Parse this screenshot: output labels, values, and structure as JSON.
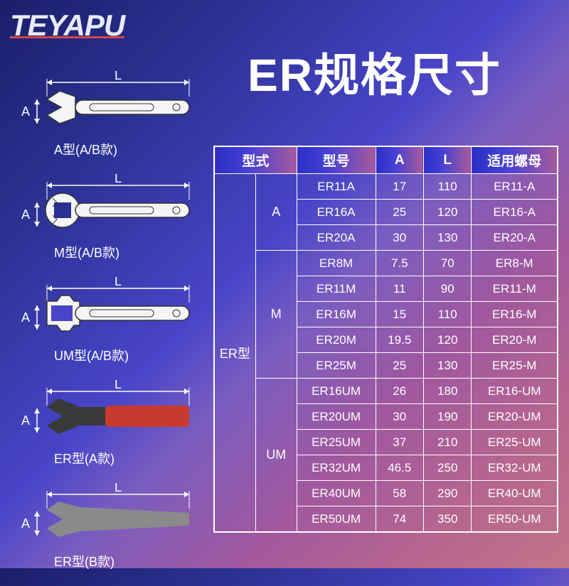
{
  "logo_text": "TEYAPU",
  "title": "ER规格尺寸",
  "background_gradient": [
    "#1a1f6b",
    "#2a3090",
    "#4845c8",
    "#7a5dc0",
    "#a0589f",
    "#b5658f",
    "#c07588"
  ],
  "diagrams": [
    {
      "name": "A",
      "caption": "A型(A/B款)",
      "dim_A": "A",
      "dim_L": "L",
      "wrench_fill": "#f5f5f5",
      "wrench_stroke": "#333333",
      "style": "outline"
    },
    {
      "name": "M",
      "caption": "M型(A/B款)",
      "dim_A": "A",
      "dim_L": "L",
      "wrench_fill": "#f5f5f5",
      "wrench_stroke": "#333333",
      "style": "outline"
    },
    {
      "name": "UM",
      "caption": "UM型(A/B款)",
      "dim_A": "A",
      "dim_L": "L",
      "wrench_fill": "#f5f5f5",
      "wrench_stroke": "#333333",
      "style": "outline"
    },
    {
      "name": "ER-A",
      "caption": "ER型(A款)",
      "dim_A": "A",
      "dim_L": "L",
      "wrench_fill": "#3a3a3a",
      "handle_color": "#c83a2e",
      "style": "photo"
    },
    {
      "name": "ER-B",
      "caption": "ER型(B款)",
      "dim_A": "A",
      "dim_L": "L",
      "wrench_fill": "#8a8a8a",
      "style": "photo"
    }
  ],
  "dim_arrow_color": "#ffffff",
  "table": {
    "columns": [
      "型式",
      "型号",
      "A",
      "L",
      "适用螺母"
    ],
    "header_gradient": [
      "#2b2fc5",
      "#4640d5",
      "#a85a9c"
    ],
    "border_color": "#ffffff",
    "text_color": "#ffffff",
    "font_size": 17,
    "header_font_size": 19,
    "col_widths_pct": [
      12,
      12,
      23,
      14,
      14,
      25
    ],
    "type_label": "ER型",
    "groups": [
      {
        "subtype": "A",
        "rows": [
          {
            "model": "ER11A",
            "A": "17",
            "L": "110",
            "nut": "ER11-A"
          },
          {
            "model": "ER16A",
            "A": "25",
            "L": "120",
            "nut": "ER16-A"
          },
          {
            "model": "ER20A",
            "A": "30",
            "L": "130",
            "nut": "ER20-A"
          }
        ]
      },
      {
        "subtype": "M",
        "rows": [
          {
            "model": "ER8M",
            "A": "7.5",
            "L": "70",
            "nut": "ER8-M"
          },
          {
            "model": "ER11M",
            "A": "11",
            "L": "90",
            "nut": "ER11-M"
          },
          {
            "model": "ER16M",
            "A": "15",
            "L": "110",
            "nut": "ER16-M"
          },
          {
            "model": "ER20M",
            "A": "19.5",
            "L": "120",
            "nut": "ER20-M"
          },
          {
            "model": "ER25M",
            "A": "25",
            "L": "130",
            "nut": "ER25-M"
          }
        ]
      },
      {
        "subtype": "UM",
        "rows": [
          {
            "model": "ER16UM",
            "A": "26",
            "L": "180",
            "nut": "ER16-UM"
          },
          {
            "model": "ER20UM",
            "A": "30",
            "L": "190",
            "nut": "ER20-UM"
          },
          {
            "model": "ER25UM",
            "A": "37",
            "L": "210",
            "nut": "ER25-UM"
          },
          {
            "model": "ER32UM",
            "A": "46.5",
            "L": "250",
            "nut": "ER32-UM"
          },
          {
            "model": "ER40UM",
            "A": "58",
            "L": "290",
            "nut": "ER40-UM"
          },
          {
            "model": "ER50UM",
            "A": "74",
            "L": "350",
            "nut": "ER50-UM"
          }
        ]
      }
    ]
  }
}
